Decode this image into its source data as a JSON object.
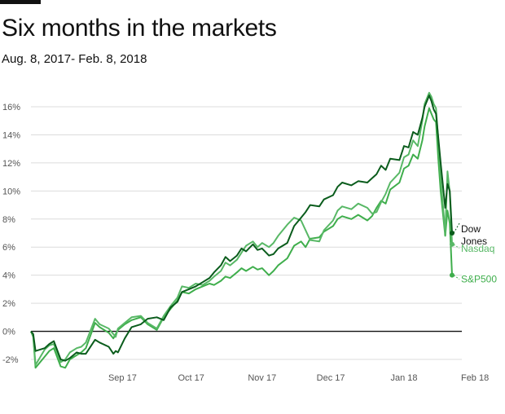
{
  "header": {
    "title": "Six months in the markets",
    "subtitle": "Aug. 8, 2017- Feb. 8, 2018"
  },
  "chart_data": {
    "type": "line",
    "title": "Six months in the markets",
    "subtitle": "Aug. 8, 2017- Feb. 8, 2018",
    "xlabel": "",
    "ylabel": "",
    "x_ticks": [
      {
        "label": "Sep 17",
        "date": "2017-09-17"
      },
      {
        "label": "Oct 17",
        "date": "2017-10-17"
      },
      {
        "label": "Nov 17",
        "date": "2017-11-17"
      },
      {
        "label": "Dec 17",
        "date": "2017-12-17"
      },
      {
        "label": "Jan 18",
        "date": "2018-01-18"
      },
      {
        "label": "Feb 18",
        "date": "2018-02-18"
      }
    ],
    "y_ticks": [
      {
        "label": "-2%",
        "value": -2
      },
      {
        "label": "0%",
        "value": 0
      },
      {
        "label": "2%",
        "value": 2
      },
      {
        "label": "4%",
        "value": 4
      },
      {
        "label": "6%",
        "value": 6
      },
      {
        "label": "8%",
        "value": 8
      },
      {
        "label": "10%",
        "value": 10
      },
      {
        "label": "12%",
        "value": 12
      },
      {
        "label": "14%",
        "value": 14
      },
      {
        "label": "16%",
        "value": 16
      }
    ],
    "xlim": [
      "2017-08-08",
      "2018-02-08"
    ],
    "ylim": [
      -2.6,
      17.2
    ],
    "grid": true,
    "legend": "end-of-line labels",
    "series": [
      {
        "name": "Dow Jones",
        "label_lines": [
          "Dow",
          "Jones"
        ],
        "color": "#0a5c1c",
        "end_value": 7.0,
        "points": [
          [
            "2017-08-08",
            0
          ],
          [
            "2017-08-09",
            -0.2
          ],
          [
            "2017-08-10",
            -1.4
          ],
          [
            "2017-08-14",
            -1.2
          ],
          [
            "2017-08-16",
            -0.9
          ],
          [
            "2017-08-18",
            -0.7
          ],
          [
            "2017-08-21",
            -2.0
          ],
          [
            "2017-08-23",
            -2.1
          ],
          [
            "2017-08-25",
            -1.9
          ],
          [
            "2017-08-28",
            -1.5
          ],
          [
            "2017-08-30",
            -1.6
          ],
          [
            "2017-09-01",
            -1.6
          ],
          [
            "2017-09-05",
            -0.6
          ],
          [
            "2017-09-07",
            -0.8
          ],
          [
            "2017-09-11",
            -1.1
          ],
          [
            "2017-09-13",
            -1.6
          ],
          [
            "2017-09-14",
            -1.4
          ],
          [
            "2017-09-15",
            -1.5
          ],
          [
            "2017-09-18",
            -0.5
          ],
          [
            "2017-09-21",
            0.3
          ],
          [
            "2017-09-25",
            0.5
          ],
          [
            "2017-09-28",
            0.9
          ],
          [
            "2017-10-02",
            1.0
          ],
          [
            "2017-10-05",
            0.8
          ],
          [
            "2017-10-08",
            1.7
          ],
          [
            "2017-10-11",
            2.1
          ],
          [
            "2017-10-13",
            2.8
          ],
          [
            "2017-10-16",
            3.0
          ],
          [
            "2017-10-19",
            3.2
          ],
          [
            "2017-10-22",
            3.5
          ],
          [
            "2017-10-25",
            3.8
          ],
          [
            "2017-10-27",
            4.2
          ],
          [
            "2017-10-30",
            4.7
          ],
          [
            "2017-11-01",
            5.3
          ],
          [
            "2017-11-03",
            5.0
          ],
          [
            "2017-11-06",
            5.4
          ],
          [
            "2017-11-08",
            5.9
          ],
          [
            "2017-11-10",
            5.7
          ],
          [
            "2017-11-13",
            6.2
          ],
          [
            "2017-11-15",
            5.8
          ],
          [
            "2017-11-17",
            5.9
          ],
          [
            "2017-11-20",
            5.4
          ],
          [
            "2017-11-22",
            5.5
          ],
          [
            "2017-11-24",
            5.9
          ],
          [
            "2017-11-28",
            6.3
          ],
          [
            "2017-12-01",
            7.5
          ],
          [
            "2017-12-04",
            8.1
          ],
          [
            "2017-12-06",
            8.5
          ],
          [
            "2017-12-08",
            9.0
          ],
          [
            "2017-12-12",
            8.9
          ],
          [
            "2017-12-14",
            9.4
          ],
          [
            "2017-12-18",
            9.7
          ],
          [
            "2017-12-20",
            10.3
          ],
          [
            "2017-12-22",
            10.6
          ],
          [
            "2017-12-26",
            10.4
          ],
          [
            "2017-12-29",
            10.7
          ],
          [
            "2018-01-02",
            10.6
          ],
          [
            "2018-01-04",
            10.9
          ],
          [
            "2018-01-06",
            11.2
          ],
          [
            "2018-01-08",
            11.8
          ],
          [
            "2018-01-10",
            11.5
          ],
          [
            "2018-01-12",
            12.3
          ],
          [
            "2018-01-16",
            12.2
          ],
          [
            "2018-01-18",
            13.2
          ],
          [
            "2018-01-20",
            13.1
          ],
          [
            "2018-01-22",
            14.2
          ],
          [
            "2018-01-24",
            14.0
          ],
          [
            "2018-01-26",
            15.2
          ],
          [
            "2018-01-27",
            16.0
          ],
          [
            "2018-01-29",
            16.8
          ],
          [
            "2018-01-30",
            16.4
          ],
          [
            "2018-01-31",
            15.8
          ],
          [
            "2018-02-01",
            15.5
          ],
          [
            "2018-02-02",
            13.8
          ],
          [
            "2018-02-03",
            12.0
          ],
          [
            "2018-02-05",
            8.8
          ],
          [
            "2018-02-06",
            10.5
          ],
          [
            "2018-02-07",
            10.0
          ],
          [
            "2018-02-08",
            7.0
          ]
        ]
      },
      {
        "name": "Nasdaq",
        "label_lines": [
          "Nasdaq"
        ],
        "color": "#58b866",
        "end_value": 6.2,
        "points": [
          [
            "2017-08-08",
            0
          ],
          [
            "2017-08-09",
            -0.3
          ],
          [
            "2017-08-10",
            -2.4
          ],
          [
            "2017-08-14",
            -1.3
          ],
          [
            "2017-08-16",
            -1.0
          ],
          [
            "2017-08-18",
            -0.9
          ],
          [
            "2017-08-21",
            -2.2
          ],
          [
            "2017-08-23",
            -2.0
          ],
          [
            "2017-08-25",
            -1.5
          ],
          [
            "2017-08-28",
            -1.2
          ],
          [
            "2017-08-30",
            -1.1
          ],
          [
            "2017-09-01",
            -0.8
          ],
          [
            "2017-09-05",
            0.9
          ],
          [
            "2017-09-07",
            0.5
          ],
          [
            "2017-09-11",
            0.2
          ],
          [
            "2017-09-13",
            -0.2
          ],
          [
            "2017-09-14",
            -0.4
          ],
          [
            "2017-09-15",
            0.2
          ],
          [
            "2017-09-18",
            0.6
          ],
          [
            "2017-09-21",
            1.0
          ],
          [
            "2017-09-25",
            1.1
          ],
          [
            "2017-09-28",
            0.6
          ],
          [
            "2017-10-02",
            0.2
          ],
          [
            "2017-10-05",
            1.1
          ],
          [
            "2017-10-08",
            1.8
          ],
          [
            "2017-10-11",
            2.4
          ],
          [
            "2017-10-13",
            3.2
          ],
          [
            "2017-10-16",
            3.1
          ],
          [
            "2017-10-19",
            3.4
          ],
          [
            "2017-10-22",
            3.3
          ],
          [
            "2017-10-25",
            3.6
          ],
          [
            "2017-10-27",
            3.9
          ],
          [
            "2017-10-30",
            4.3
          ],
          [
            "2017-11-01",
            4.9
          ],
          [
            "2017-11-03",
            4.7
          ],
          [
            "2017-11-06",
            5.1
          ],
          [
            "2017-11-08",
            5.6
          ],
          [
            "2017-11-10",
            6.1
          ],
          [
            "2017-11-13",
            6.4
          ],
          [
            "2017-11-15",
            6.0
          ],
          [
            "2017-11-17",
            6.3
          ],
          [
            "2017-11-20",
            6.0
          ],
          [
            "2017-11-22",
            6.3
          ],
          [
            "2017-11-24",
            6.8
          ],
          [
            "2017-11-28",
            7.6
          ],
          [
            "2017-12-01",
            8.1
          ],
          [
            "2017-12-04",
            7.9
          ],
          [
            "2017-12-06",
            7.2
          ],
          [
            "2017-12-08",
            6.5
          ],
          [
            "2017-12-12",
            6.4
          ],
          [
            "2017-12-14",
            7.2
          ],
          [
            "2017-12-18",
            7.9
          ],
          [
            "2017-12-20",
            8.6
          ],
          [
            "2017-12-22",
            8.9
          ],
          [
            "2017-12-26",
            8.7
          ],
          [
            "2017-12-29",
            9.1
          ],
          [
            "2018-01-02",
            8.8
          ],
          [
            "2018-01-04",
            8.4
          ],
          [
            "2018-01-06",
            8.5
          ],
          [
            "2018-01-08",
            9.2
          ],
          [
            "2018-01-10",
            9.8
          ],
          [
            "2018-01-12",
            10.6
          ],
          [
            "2018-01-16",
            11.3
          ],
          [
            "2018-01-18",
            12.4
          ],
          [
            "2018-01-20",
            12.6
          ],
          [
            "2018-01-22",
            13.6
          ],
          [
            "2018-01-24",
            13.2
          ],
          [
            "2018-01-26",
            15.0
          ],
          [
            "2018-01-27",
            16.2
          ],
          [
            "2018-01-29",
            17.0
          ],
          [
            "2018-01-30",
            16.7
          ],
          [
            "2018-01-31",
            16.2
          ],
          [
            "2018-02-01",
            15.9
          ],
          [
            "2018-02-02",
            13.6
          ],
          [
            "2018-02-03",
            11.0
          ],
          [
            "2018-02-05",
            7.0
          ],
          [
            "2018-02-06",
            11.4
          ],
          [
            "2018-02-07",
            9.9
          ],
          [
            "2018-02-08",
            6.2
          ]
        ]
      },
      {
        "name": "S&P500",
        "label_lines": [
          "S&P500"
        ],
        "color": "#3fae4c",
        "end_value": 4.0,
        "points": [
          [
            "2017-08-08",
            0
          ],
          [
            "2017-08-09",
            -0.4
          ],
          [
            "2017-08-10",
            -2.6
          ],
          [
            "2017-08-14",
            -1.8
          ],
          [
            "2017-08-16",
            -1.4
          ],
          [
            "2017-08-18",
            -1.2
          ],
          [
            "2017-08-21",
            -2.5
          ],
          [
            "2017-08-23",
            -2.6
          ],
          [
            "2017-08-25",
            -2.0
          ],
          [
            "2017-08-28",
            -1.7
          ],
          [
            "2017-08-30",
            -1.5
          ],
          [
            "2017-09-01",
            -1.2
          ],
          [
            "2017-09-05",
            0.6
          ],
          [
            "2017-09-07",
            0.3
          ],
          [
            "2017-09-11",
            -0.1
          ],
          [
            "2017-09-13",
            -0.5
          ],
          [
            "2017-09-14",
            -0.2
          ],
          [
            "2017-09-15",
            0.1
          ],
          [
            "2017-09-18",
            0.5
          ],
          [
            "2017-09-21",
            0.8
          ],
          [
            "2017-09-25",
            1.0
          ],
          [
            "2017-09-28",
            0.5
          ],
          [
            "2017-10-02",
            0.1
          ],
          [
            "2017-10-05",
            1.0
          ],
          [
            "2017-10-08",
            1.6
          ],
          [
            "2017-10-11",
            2.2
          ],
          [
            "2017-10-13",
            2.8
          ],
          [
            "2017-10-16",
            2.7
          ],
          [
            "2017-10-19",
            3.0
          ],
          [
            "2017-10-22",
            3.2
          ],
          [
            "2017-10-25",
            3.4
          ],
          [
            "2017-10-27",
            3.3
          ],
          [
            "2017-10-30",
            3.6
          ],
          [
            "2017-11-01",
            3.9
          ],
          [
            "2017-11-03",
            3.8
          ],
          [
            "2017-11-06",
            4.2
          ],
          [
            "2017-11-08",
            4.5
          ],
          [
            "2017-11-10",
            4.3
          ],
          [
            "2017-11-13",
            4.6
          ],
          [
            "2017-11-15",
            4.4
          ],
          [
            "2017-11-17",
            4.5
          ],
          [
            "2017-11-20",
            4.0
          ],
          [
            "2017-11-22",
            4.3
          ],
          [
            "2017-11-24",
            4.7
          ],
          [
            "2017-11-28",
            5.2
          ],
          [
            "2017-12-01",
            6.1
          ],
          [
            "2017-12-04",
            6.4
          ],
          [
            "2017-12-06",
            6.0
          ],
          [
            "2017-12-08",
            6.6
          ],
          [
            "2017-12-12",
            6.7
          ],
          [
            "2017-12-14",
            7.1
          ],
          [
            "2017-12-18",
            7.5
          ],
          [
            "2017-12-20",
            8.0
          ],
          [
            "2017-12-22",
            8.2
          ],
          [
            "2017-12-26",
            8.0
          ],
          [
            "2017-12-29",
            8.3
          ],
          [
            "2018-01-02",
            7.9
          ],
          [
            "2018-01-04",
            8.2
          ],
          [
            "2018-01-06",
            8.8
          ],
          [
            "2018-01-08",
            9.3
          ],
          [
            "2018-01-10",
            9.1
          ],
          [
            "2018-01-12",
            10.1
          ],
          [
            "2018-01-16",
            10.6
          ],
          [
            "2018-01-18",
            11.6
          ],
          [
            "2018-01-20",
            11.8
          ],
          [
            "2018-01-22",
            12.6
          ],
          [
            "2018-01-24",
            12.3
          ],
          [
            "2018-01-26",
            13.6
          ],
          [
            "2018-01-27",
            14.6
          ],
          [
            "2018-01-29",
            15.9
          ],
          [
            "2018-01-30",
            15.5
          ],
          [
            "2018-01-31",
            15.1
          ],
          [
            "2018-02-01",
            14.9
          ],
          [
            "2018-02-02",
            12.3
          ],
          [
            "2018-02-03",
            10.0
          ],
          [
            "2018-02-05",
            6.8
          ],
          [
            "2018-02-06",
            8.6
          ],
          [
            "2018-02-07",
            7.7
          ],
          [
            "2018-02-08",
            4.0
          ]
        ]
      }
    ]
  }
}
